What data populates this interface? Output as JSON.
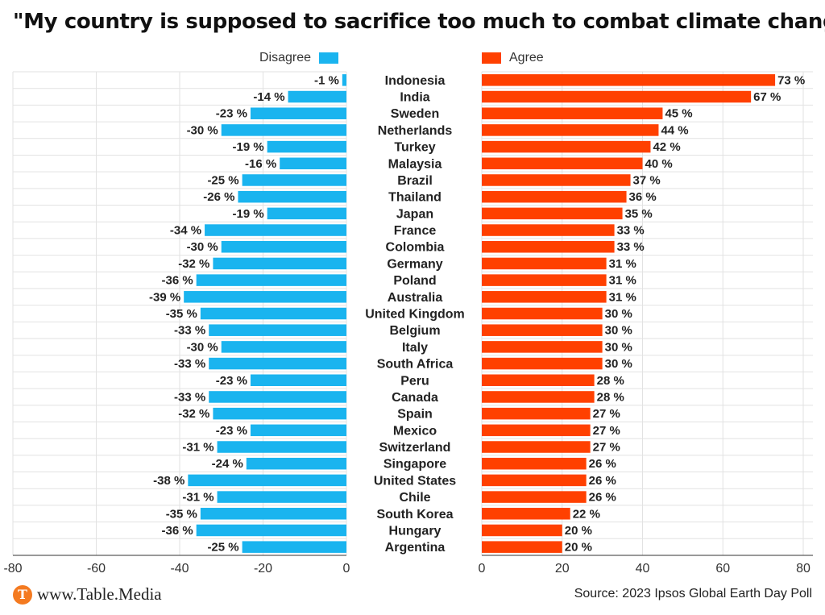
{
  "header": {
    "title": "\"My country is supposed to sacrifice too much to combat climate change\""
  },
  "legend": {
    "disagree": "Disagree",
    "agree": "Agree"
  },
  "colors": {
    "disagree": "#1ab4ef",
    "agree": "#ff4000",
    "grid": "#e2e2e2",
    "axis": "#333333"
  },
  "chart_data": {
    "type": "bar",
    "orientation": "horizontal-diverging",
    "series": [
      {
        "name": "Disagree",
        "values": [
          -1,
          -14,
          -23,
          -30,
          -19,
          -16,
          -25,
          -26,
          -19,
          -34,
          -30,
          -32,
          -36,
          -39,
          -35,
          -33,
          -30,
          -33,
          -23,
          -33,
          -32,
          -23,
          -31,
          -24,
          -38,
          -31,
          -35,
          -36,
          -25
        ]
      },
      {
        "name": "Agree",
        "values": [
          73,
          67,
          45,
          44,
          42,
          40,
          37,
          36,
          35,
          33,
          33,
          31,
          31,
          31,
          30,
          30,
          30,
          30,
          28,
          28,
          27,
          27,
          27,
          26,
          26,
          26,
          22,
          20,
          20
        ]
      }
    ],
    "categories": [
      "Indonesia",
      "India",
      "Sweden",
      "Netherlands",
      "Turkey",
      "Malaysia",
      "Brazil",
      "Thailand",
      "Japan",
      "France",
      "Colombia",
      "Germany",
      "Poland",
      "Australia",
      "United Kingdom",
      "Belgium",
      "Italy",
      "South Africa",
      "Peru",
      "Canada",
      "Spain",
      "Mexico",
      "Switzerland",
      "Singapore",
      "United States",
      "Chile",
      "South Korea",
      "Hungary",
      "Argentina"
    ],
    "value_suffix": " %",
    "left_xlim": [
      -80,
      0
    ],
    "left_ticks": [
      "-80",
      "-60",
      "-40",
      "-20",
      "0"
    ],
    "right_xlim": [
      0,
      80
    ],
    "right_ticks": [
      "0",
      "20",
      "40",
      "60",
      "80"
    ],
    "grid": true
  },
  "footer": {
    "brand": "www.Table.Media",
    "logo_letter": "T",
    "source": "Source: 2023 Ipsos Global Earth Day Poll"
  }
}
